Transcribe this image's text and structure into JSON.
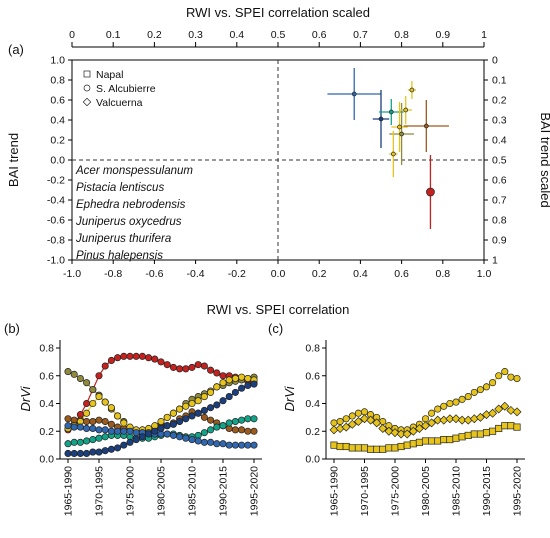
{
  "chart_data": [
    {
      "panel": "(a)",
      "type": "scatter",
      "title": "RWI vs. SPEI correlation scaled",
      "xlabel": "RWI vs. SPEI correlation",
      "ylabel": "BAI trend",
      "y2label": "BAI trend scaled",
      "xlim": [
        -1.0,
        1.0
      ],
      "ylim": [
        -1.0,
        1.0
      ],
      "x_ticks": [
        "-1.0",
        "-0.8",
        "-0.6",
        "-0.4",
        "-0.2",
        "0.0",
        "0.2",
        "0.4",
        "0.6",
        "0.8",
        "1.0"
      ],
      "y_ticks": [
        "1.0",
        "0.8",
        "0.6",
        "0.4",
        "0.2",
        "0.0",
        "-0.2",
        "-0.4",
        "-0.6",
        "-0.8",
        "-1.0"
      ],
      "top_ticks": [
        "0",
        "0.1",
        "0.2",
        "0.3",
        "0.4",
        "0.5",
        "0.6",
        "0.7",
        "0.8",
        "0.9",
        "1"
      ],
      "right_ticks": [
        "0",
        "0.1",
        "0.2",
        "0.3",
        "0.4",
        "0.5",
        "0.6",
        "0.7",
        "0.8",
        "0.9",
        "1"
      ],
      "reference_lines": {
        "x": 0,
        "y": 0
      },
      "site_legend": [
        {
          "label": "Napal",
          "marker": "square"
        },
        {
          "label": "S. Alcubierre",
          "marker": "circle"
        },
        {
          "label": "Valcuerna",
          "marker": "diamond"
        }
      ],
      "species_legend": [
        {
          "label": "Acer monspessulanum",
          "color": "#1b3f7d"
        },
        {
          "label": "Pistacia lentiscus",
          "color": "#12a489"
        },
        {
          "label": "Ephedra nebrodensis",
          "color": "#8f8a3c"
        },
        {
          "label": "Juniperus oxycedrus",
          "color": "#e6c41b"
        },
        {
          "label": "Juniperus thurifera",
          "color": "#9a5b1d"
        },
        {
          "label": "Pinus halepensis",
          "color": "#c4221f"
        }
      ],
      "points": [
        {
          "species": "Acer monspessulanum",
          "x": 0.37,
          "y": 0.66,
          "xerr": 0.13,
          "yerr": 0.26,
          "color": "#2f67b0",
          "size": 3
        },
        {
          "species": "Acer monspessulanum",
          "x": 0.5,
          "y": 0.41,
          "xerr": 0.04,
          "yerr": 0.29,
          "color": "#1b3f7d",
          "size": 3
        },
        {
          "species": "Pistacia lentiscus",
          "x": 0.55,
          "y": 0.48,
          "xerr": 0.06,
          "yerr": 0.13,
          "color": "#12a489",
          "size": 3
        },
        {
          "species": "Ephedra nebrodensis",
          "x": 0.6,
          "y": 0.26,
          "xerr": 0.06,
          "yerr": 0.31,
          "color": "#8f8a3c",
          "size": 3
        },
        {
          "species": "Juniperus oxycedrus",
          "x": 0.65,
          "y": 0.7,
          "xerr": 0.02,
          "yerr": 0.09,
          "color": "#e6c41b",
          "size": 3
        },
        {
          "species": "Juniperus oxycedrus",
          "x": 0.62,
          "y": 0.5,
          "xerr": 0.03,
          "yerr": 0.14,
          "color": "#e6c41b",
          "size": 3
        },
        {
          "species": "Juniperus oxycedrus",
          "x": 0.59,
          "y": 0.33,
          "xerr": 0.04,
          "yerr": 0.25,
          "color": "#e6c41b",
          "size": 3
        },
        {
          "species": "Juniperus oxycedrus",
          "x": 0.56,
          "y": 0.06,
          "xerr": 0.02,
          "yerr": 0.23,
          "color": "#e6c41b",
          "size": 3
        },
        {
          "species": "Juniperus thurifera",
          "x": 0.72,
          "y": 0.34,
          "xerr": 0.11,
          "yerr": 0.26,
          "color": "#9a5b1d",
          "size": 3
        },
        {
          "species": "Pinus halepensis",
          "x": 0.74,
          "y": -0.32,
          "xerr": 0.02,
          "yerr": 0.37,
          "color": "#c4221f",
          "size": 6
        }
      ]
    },
    {
      "panel": "(b)",
      "type": "scatter",
      "ylabel": "DrVi",
      "ylim": [
        0,
        0.8
      ],
      "y_ticks": [
        "0.0",
        "0.2",
        "0.4",
        "0.6",
        "0.8"
      ],
      "x_categories": [
        "1965-1990",
        "1966-1991",
        "1967-1992",
        "1968-1993",
        "1969-1994",
        "1970-1995",
        "1971-1996",
        "1972-1997",
        "1973-1998",
        "1974-1999",
        "1975-2000",
        "1976-2001",
        "1977-2002",
        "1978-2003",
        "1979-2004",
        "1980-2005",
        "1981-2006",
        "1982-2007",
        "1983-2008",
        "1984-2009",
        "1985-2010",
        "1986-2011",
        "1987-2012",
        "1988-2013",
        "1989-2014",
        "1990-2015",
        "1991-2016",
        "1992-2017",
        "1993-2018",
        "1994-2019",
        "1995-2020"
      ],
      "x_labels": [
        "1965-1990",
        "1970-1995",
        "1975-2000",
        "1980-2005",
        "1985-2010",
        "1990-2015",
        "1995-2020"
      ],
      "series": [
        {
          "color": "#c4221f",
          "marker": "circle",
          "values": [
            0.21,
            0.25,
            0.32,
            0.4,
            0.5,
            0.6,
            0.67,
            0.71,
            0.73,
            0.74,
            0.74,
            0.74,
            0.74,
            0.73,
            0.72,
            0.7,
            0.68,
            0.66,
            0.65,
            0.65,
            0.66,
            0.68,
            0.67,
            0.64,
            0.62,
            0.6,
            0.6,
            0.59,
            0.58,
            0.56,
            0.55
          ]
        },
        {
          "color": "#8f8a3c",
          "marker": "circle",
          "values": [
            0.63,
            0.61,
            0.58,
            0.55,
            0.5,
            0.46,
            0.41,
            0.36,
            0.31,
            0.27,
            0.22,
            0.2,
            0.18,
            0.19,
            0.22,
            0.26,
            0.3,
            0.33,
            0.36,
            0.4,
            0.43,
            0.45,
            0.47,
            0.49,
            0.52,
            0.53,
            0.55,
            0.56,
            0.57,
            0.58,
            0.59
          ]
        },
        {
          "color": "#9a5b1d",
          "marker": "circle",
          "values": [
            0.29,
            0.28,
            0.28,
            0.27,
            0.27,
            0.28,
            0.27,
            0.25,
            0.23,
            0.22,
            0.21,
            0.2,
            0.2,
            0.21,
            0.22,
            0.23,
            0.24,
            0.26,
            0.29,
            0.31,
            0.34,
            0.33,
            0.3,
            0.28,
            0.26,
            0.24,
            0.22,
            0.21,
            0.21,
            0.2,
            0.2
          ]
        },
        {
          "color": "#e6c41b",
          "marker": "circle",
          "values": [
            0.22,
            0.24,
            0.27,
            0.33,
            0.4,
            0.45,
            0.41,
            0.37,
            0.31,
            0.26,
            0.23,
            0.21,
            0.21,
            0.22,
            0.24,
            0.27,
            0.3,
            0.33,
            0.36,
            0.38,
            0.4,
            0.42,
            0.45,
            0.48,
            0.52,
            0.55,
            0.57,
            0.58,
            0.59,
            0.58,
            0.57
          ]
        },
        {
          "color": "#12a489",
          "marker": "circle",
          "values": [
            0.11,
            0.12,
            0.12,
            0.13,
            0.14,
            0.15,
            0.16,
            0.17,
            0.17,
            0.17,
            0.16,
            0.15,
            0.15,
            0.15,
            0.16,
            0.17,
            0.18,
            0.18,
            0.17,
            0.16,
            0.16,
            0.17,
            0.19,
            0.21,
            0.23,
            0.24,
            0.26,
            0.27,
            0.28,
            0.29,
            0.29
          ]
        },
        {
          "color": "#2f67b0",
          "marker": "circle",
          "values": [
            0.24,
            0.23,
            0.23,
            0.22,
            0.22,
            0.21,
            0.21,
            0.2,
            0.2,
            0.2,
            0.2,
            0.19,
            0.19,
            0.19,
            0.18,
            0.18,
            0.18,
            0.17,
            0.16,
            0.15,
            0.14,
            0.13,
            0.12,
            0.12,
            0.11,
            0.11,
            0.1,
            0.1,
            0.1,
            0.1,
            0.1
          ]
        },
        {
          "color": "#1b3f7d",
          "marker": "circle",
          "values": [
            0.04,
            0.04,
            0.04,
            0.04,
            0.05,
            0.05,
            0.06,
            0.07,
            0.08,
            0.1,
            0.12,
            0.14,
            0.16,
            0.18,
            0.2,
            0.22,
            0.24,
            0.25,
            0.27,
            0.29,
            0.31,
            0.33,
            0.35,
            0.37,
            0.39,
            0.42,
            0.45,
            0.48,
            0.51,
            0.53,
            0.54
          ]
        }
      ]
    },
    {
      "panel": "(c)",
      "type": "scatter",
      "ylabel": "DrVi",
      "ylim": [
        0,
        0.8
      ],
      "y_ticks": [
        "0.0",
        "0.2",
        "0.4",
        "0.6",
        "0.8"
      ],
      "x_categories": [
        "1965-1990",
        "1966-1991",
        "1967-1992",
        "1968-1993",
        "1969-1994",
        "1970-1995",
        "1971-1996",
        "1972-1997",
        "1973-1998",
        "1974-1999",
        "1975-2000",
        "1976-2001",
        "1977-2002",
        "1978-2003",
        "1979-2004",
        "1980-2005",
        "1981-2006",
        "1982-2007",
        "1983-2008",
        "1984-2009",
        "1985-2010",
        "1986-2011",
        "1987-2012",
        "1988-2013",
        "1989-2014",
        "1990-2015",
        "1991-2016",
        "1992-2017",
        "1993-2018",
        "1994-2019",
        "1995-2020"
      ],
      "x_labels": [
        "1965-1990",
        "1970-1995",
        "1975-2000",
        "1980-2005",
        "1985-2010",
        "1990-2015",
        "1995-2020"
      ],
      "series": [
        {
          "color": "#e6c41b",
          "marker": "circle",
          "values": [
            0.26,
            0.27,
            0.29,
            0.31,
            0.33,
            0.34,
            0.32,
            0.3,
            0.27,
            0.24,
            0.22,
            0.21,
            0.21,
            0.23,
            0.25,
            0.29,
            0.33,
            0.36,
            0.38,
            0.4,
            0.41,
            0.43,
            0.45,
            0.48,
            0.5,
            0.52,
            0.55,
            0.6,
            0.63,
            0.59,
            0.58
          ]
        },
        {
          "color": "#e6c41b",
          "marker": "diamond",
          "values": [
            0.21,
            0.22,
            0.23,
            0.25,
            0.27,
            0.29,
            0.28,
            0.26,
            0.22,
            0.2,
            0.19,
            0.18,
            0.18,
            0.2,
            0.22,
            0.24,
            0.26,
            0.28,
            0.28,
            0.29,
            0.29,
            0.28,
            0.28,
            0.29,
            0.3,
            0.32,
            0.33,
            0.36,
            0.38,
            0.35,
            0.34
          ]
        },
        {
          "color": "#e6c41b",
          "marker": "square",
          "values": [
            0.1,
            0.09,
            0.09,
            0.08,
            0.08,
            0.08,
            0.07,
            0.07,
            0.07,
            0.08,
            0.08,
            0.09,
            0.1,
            0.11,
            0.12,
            0.13,
            0.13,
            0.13,
            0.14,
            0.14,
            0.15,
            0.16,
            0.17,
            0.18,
            0.18,
            0.19,
            0.2,
            0.22,
            0.24,
            0.24,
            0.23
          ]
        }
      ]
    }
  ]
}
